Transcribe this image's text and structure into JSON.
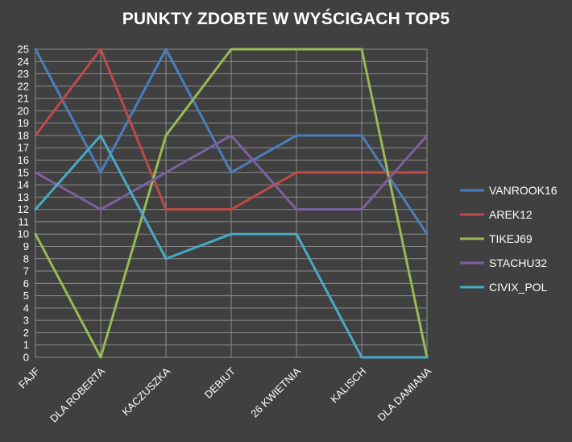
{
  "chart_data": {
    "type": "line",
    "title": "PUNKTY ZDOBTE W WYŚCIGACH TOP5",
    "xlabel": "",
    "ylabel": "",
    "categories": [
      "FAJF",
      "DLA ROBERTA",
      "KACZUSZKA",
      "DEBIUT",
      "26 KWIETNIA",
      "KALISCH",
      "DLA DAMIANA"
    ],
    "ylim": [
      0,
      25
    ],
    "ytick_step": 1,
    "grid": true,
    "legend_position": "right",
    "series": [
      {
        "name": "VANROOK16",
        "color": "#4a7ebb",
        "values": [
          25,
          15,
          25,
          15,
          18,
          18,
          10
        ]
      },
      {
        "name": "AREK12",
        "color": "#be4b48",
        "values": [
          18,
          25,
          12,
          12,
          15,
          15,
          15
        ]
      },
      {
        "name": "TIKEJ69",
        "color": "#98b954",
        "values": [
          10,
          0,
          18,
          25,
          25,
          25,
          0
        ]
      },
      {
        "name": "STACHU32",
        "color": "#7d60a0",
        "values": [
          15,
          12,
          15,
          18,
          12,
          12,
          18
        ]
      },
      {
        "name": "CIVIX_POL",
        "color": "#46aac5",
        "values": [
          12,
          18,
          8,
          10,
          10,
          0,
          0
        ]
      }
    ]
  }
}
